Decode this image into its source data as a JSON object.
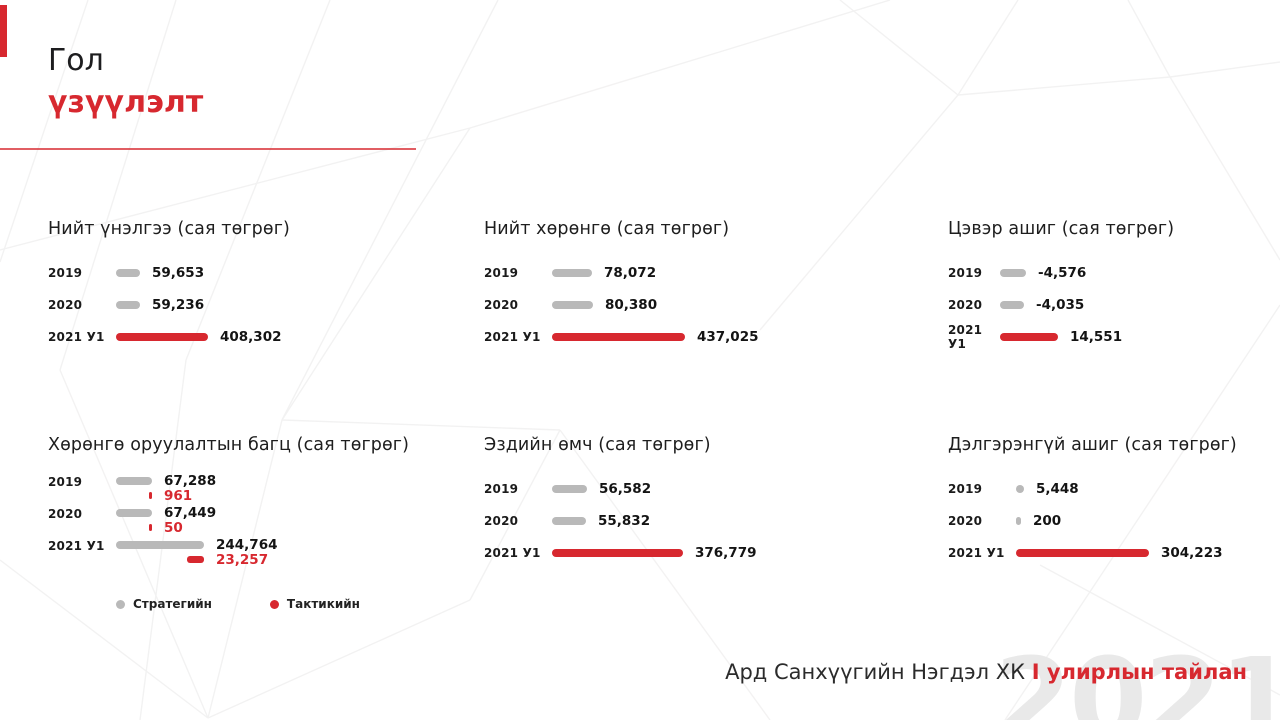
{
  "slide": {
    "title_line1": "Гол",
    "title_line2": "үзүүлэлт",
    "footer_company": "Ард Санхүүгийн Нэгдэл ХК",
    "footer_report": "I улирлын тайлан",
    "watermark": "2021"
  },
  "colors": {
    "accent_red": "#d7282f",
    "bar_gray": "#b9b9b9",
    "watermark_gray": "#e9e9e9"
  },
  "chart_data": [
    {
      "type": "bar",
      "title": "Нийт үнэлгээ (сая төгрөг)",
      "categories": [
        "2019",
        "2020",
        "2021 У1"
      ],
      "rows": [
        {
          "label": "2019",
          "value": 59653,
          "display": "59,653",
          "color": "gray"
        },
        {
          "label": "2020",
          "value": 59236,
          "display": "59,236",
          "color": "gray"
        },
        {
          "label": "2021 У1",
          "value": 408302,
          "display": "408,302",
          "color": "red"
        }
      ]
    },
    {
      "type": "bar",
      "title": "Нийт хөрөнгө (сая төгрөг)",
      "categories": [
        "2019",
        "2020",
        "2021 У1"
      ],
      "rows": [
        {
          "label": "2019",
          "value": 78072,
          "display": "78,072",
          "color": "gray"
        },
        {
          "label": "2020",
          "value": 80380,
          "display": "80,380",
          "color": "gray"
        },
        {
          "label": "2021 У1",
          "value": 437025,
          "display": "437,025",
          "color": "red"
        }
      ]
    },
    {
      "type": "bar",
      "title": "Цэвэр ашиг (сая төгрөг)",
      "categories": [
        "2019",
        "2020",
        "2021 У1"
      ],
      "rows": [
        {
          "label": "2019",
          "value": -4576,
          "display": "-4,576",
          "color": "gray"
        },
        {
          "label": "2020",
          "value": -4035,
          "display": "-4,035",
          "color": "gray"
        },
        {
          "label": "2021 У1",
          "value": 14551,
          "display": "14,551",
          "color": "red"
        }
      ]
    },
    {
      "type": "bar",
      "title": "Хөрөнгө оруулалтын багц (сая төгрөг)",
      "categories": [
        "2019",
        "2020",
        "2021 У1"
      ],
      "series_names": [
        "Стратегийн",
        "Тактикийн"
      ],
      "rows": [
        {
          "label": "2019",
          "strategic": 67288,
          "strategic_display": "67,288",
          "tactical": 961,
          "tactical_display": "961"
        },
        {
          "label": "2020",
          "strategic": 67449,
          "strategic_display": "67,449",
          "tactical": 50,
          "tactical_display": "50"
        },
        {
          "label": "2021 У1",
          "strategic": 244764,
          "strategic_display": "244,764",
          "tactical": 23257,
          "tactical_display": "23,257"
        }
      ],
      "legend": [
        {
          "label": "Стратегийн",
          "color": "gray"
        },
        {
          "label": "Тактикийн",
          "color": "red"
        }
      ]
    },
    {
      "type": "bar",
      "title": "Эздийн өмч (сая төгрөг)",
      "categories": [
        "2019",
        "2020",
        "2021 У1"
      ],
      "rows": [
        {
          "label": "2019",
          "value": 56582,
          "display": "56,582",
          "color": "gray"
        },
        {
          "label": "2020",
          "value": 55832,
          "display": "55,832",
          "color": "gray"
        },
        {
          "label": "2021 У1",
          "value": 376779,
          "display": "376,779",
          "color": "red"
        }
      ]
    },
    {
      "type": "bar",
      "title": "Дэлгэрэнгүй ашиг (сая төгрөг)",
      "categories": [
        "2019",
        "2020",
        "2021 У1"
      ],
      "rows": [
        {
          "label": "2019",
          "value": 5448,
          "display": "5,448",
          "color": "gray"
        },
        {
          "label": "2020",
          "value": 200,
          "display": "200",
          "color": "gray"
        },
        {
          "label": "2021 У1",
          "value": 304223,
          "display": "304,223",
          "color": "red"
        }
      ]
    }
  ]
}
